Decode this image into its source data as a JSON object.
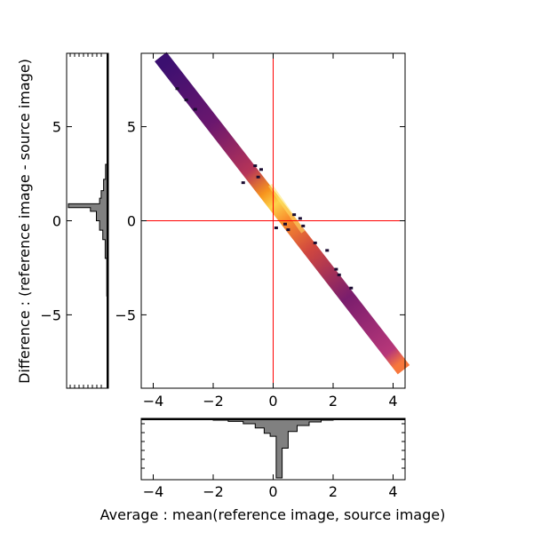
{
  "chart_data": {
    "type": "heatmap",
    "xlabel": "Average :  mean(reference image, source image)",
    "ylabel": "Difference : (reference image - source image)",
    "xlim": [
      -4.4,
      4.4
    ],
    "ylim": [
      -8.9,
      8.9
    ],
    "xticks": [
      -4,
      -2,
      0,
      2,
      4
    ],
    "xtick_labels": [
      "−4",
      "−2",
      "0",
      "2",
      "4"
    ],
    "yticks": [
      5,
      0,
      -5
    ],
    "ytick_labels": [
      "5",
      "0",
      "−5"
    ],
    "reference_lines": {
      "x": 0,
      "y": 0,
      "color": "#ff0000"
    },
    "band": {
      "description_slope": -2,
      "start": [
        -3.6,
        8.4
      ],
      "end": [
        4.2,
        -7.6
      ],
      "colormap": [
        "#000004",
        "#420a68",
        "#932667",
        "#dd513a",
        "#fca50a",
        "#fcffa4"
      ]
    },
    "hist_x": {
      "bins": [
        -4.0,
        -3.0,
        -2.0,
        -1.5,
        -1.0,
        -0.6,
        -0.3,
        -0.1,
        0.1,
        0.3,
        0.5,
        0.8,
        1.2,
        1.6,
        2.0,
        3.0,
        4.4
      ],
      "counts": [
        0.01,
        0.02,
        0.03,
        0.05,
        0.09,
        0.16,
        0.25,
        0.3,
        1.0,
        0.5,
        0.22,
        0.12,
        0.06,
        0.03,
        0.01,
        0.0
      ],
      "fill": "#808080"
    },
    "hist_y": {
      "bins": [
        -8.0,
        -4.0,
        -2.0,
        -1.0,
        -0.5,
        0.0,
        0.5,
        0.7,
        0.9,
        1.2,
        1.6,
        2.2,
        3.0,
        5.0,
        8.0
      ],
      "counts": [
        0.02,
        0.04,
        0.08,
        0.14,
        0.22,
        0.3,
        0.45,
        1.0,
        0.22,
        0.18,
        0.12,
        0.07,
        0.03,
        0.01
      ],
      "fill": "#808080"
    }
  }
}
